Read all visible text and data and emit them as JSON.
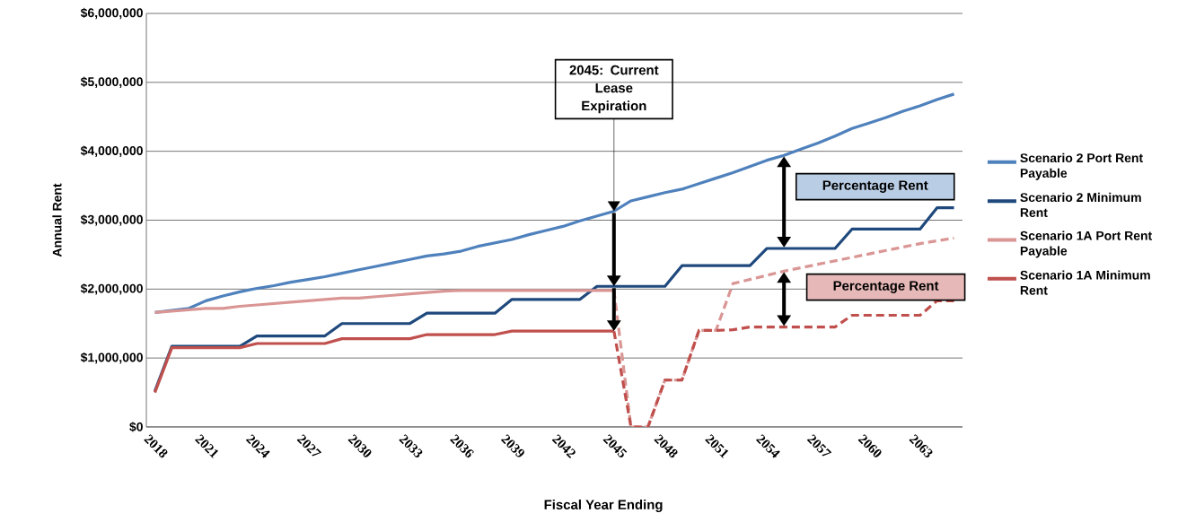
{
  "chart_data": {
    "type": "line",
    "xlabel": "Fiscal Year Ending",
    "ylabel": "Annual Rent",
    "categories": [
      "2018",
      null,
      null,
      "2021",
      null,
      null,
      "2024",
      null,
      null,
      "2027",
      null,
      null,
      "2030",
      null,
      null,
      "2033",
      null,
      null,
      "2036",
      null,
      null,
      "2039",
      null,
      null,
      "2042",
      null,
      null,
      "2045",
      null,
      null,
      "2048",
      null,
      null,
      "2051",
      null,
      null,
      "2054",
      null,
      null,
      "2057",
      null,
      null,
      "2060",
      null,
      null,
      "2063",
      null,
      null
    ],
    "ylim": [
      0,
      6000000
    ],
    "yticks": [
      {
        "value": 0,
        "label": "$0"
      },
      {
        "value": 1000000,
        "label": "$1,000,000"
      },
      {
        "value": 2000000,
        "label": "$2,000,000"
      },
      {
        "value": 3000000,
        "label": "$3,000,000"
      },
      {
        "value": 4000000,
        "label": "$4,000,000"
      },
      {
        "value": 5000000,
        "label": "$5,000,000"
      },
      {
        "value": 6000000,
        "label": "$6,000,000"
      }
    ],
    "grid": "y",
    "legend": "right",
    "series": [
      {
        "name": "Scenario 2 Port Rent Payable",
        "color": "#4f81bd",
        "line_style": "solid",
        "values": [
          1660000,
          1690000,
          1720000,
          1830000,
          1900000,
          1960000,
          2010000,
          2050000,
          2100000,
          2140000,
          2180000,
          2230000,
          2280000,
          2330000,
          2380000,
          2430000,
          2480000,
          2510000,
          2550000,
          2620000,
          2670000,
          2720000,
          2790000,
          2850000,
          2910000,
          2990000,
          3060000,
          3130000,
          3280000,
          3340000,
          3400000,
          3450000,
          3530000,
          3610000,
          3690000,
          3780000,
          3870000,
          3940000,
          4030000,
          4120000,
          4220000,
          4330000,
          4410000,
          4490000,
          4580000,
          4660000,
          4750000,
          4830000
        ]
      },
      {
        "name": "Scenario 2 Minimum Rent",
        "color": "#1f497d",
        "line_style": "solid",
        "values": [
          520000,
          1170000,
          1170000,
          1170000,
          1170000,
          1170000,
          1320000,
          1320000,
          1320000,
          1320000,
          1320000,
          1500000,
          1500000,
          1500000,
          1500000,
          1500000,
          1650000,
          1650000,
          1650000,
          1650000,
          1650000,
          1850000,
          1850000,
          1850000,
          1850000,
          1850000,
          2040000,
          2040000,
          2040000,
          2040000,
          2040000,
          2340000,
          2340000,
          2340000,
          2340000,
          2340000,
          2590000,
          2590000,
          2590000,
          2590000,
          2590000,
          2870000,
          2870000,
          2870000,
          2870000,
          2870000,
          3180000,
          3180000
        ]
      },
      {
        "name": "Scenario 1A Port Rent Payable",
        "color": "#d99694",
        "line_style": "solid",
        "values": [
          1660000,
          1680000,
          1700000,
          1720000,
          1720000,
          1750000,
          1770000,
          1790000,
          1810000,
          1830000,
          1850000,
          1870000,
          1870000,
          1890000,
          1910000,
          1930000,
          1950000,
          1970000,
          1980000,
          1980000,
          1980000,
          1980000,
          1980000,
          1980000,
          1980000,
          1980000,
          1980000,
          1980000,
          null,
          null,
          null,
          null,
          null,
          null,
          null,
          null,
          null,
          null,
          null,
          null,
          null,
          null,
          null,
          null,
          null,
          null,
          null,
          null
        ]
      },
      {
        "name": "Scenario 1A Minimum Rent",
        "color": "#c0504d",
        "line_style": "solid",
        "values": [
          500000,
          1150000,
          1150000,
          1150000,
          1150000,
          1150000,
          1210000,
          1210000,
          1210000,
          1210000,
          1210000,
          1280000,
          1280000,
          1280000,
          1280000,
          1280000,
          1340000,
          1340000,
          1340000,
          1340000,
          1340000,
          1390000,
          1390000,
          1390000,
          1390000,
          1390000,
          1390000,
          1390000,
          null,
          null,
          null,
          null,
          null,
          null,
          null,
          null,
          null,
          null,
          null,
          null,
          null,
          null,
          null,
          null,
          null,
          null,
          null,
          null
        ]
      },
      {
        "color": "#d99694",
        "line_style": "dashed",
        "values": [
          null,
          null,
          null,
          null,
          null,
          null,
          null,
          null,
          null,
          null,
          null,
          null,
          null,
          null,
          null,
          null,
          null,
          null,
          null,
          null,
          null,
          null,
          null,
          null,
          null,
          null,
          null,
          1980000,
          0,
          0,
          680000,
          680000,
          1400000,
          1400000,
          2080000,
          2140000,
          2200000,
          2260000,
          2310000,
          2360000,
          2410000,
          2460000,
          2510000,
          2560000,
          2610000,
          2660000,
          2700000,
          2740000
        ]
      },
      {
        "color": "#c0504d",
        "line_style": "dashed",
        "values": [
          null,
          null,
          null,
          null,
          null,
          null,
          null,
          null,
          null,
          null,
          null,
          null,
          null,
          null,
          null,
          null,
          null,
          null,
          null,
          null,
          null,
          null,
          null,
          null,
          null,
          null,
          null,
          1390000,
          0,
          0,
          680000,
          680000,
          1400000,
          1400000,
          1410000,
          1450000,
          1450000,
          1450000,
          1450000,
          1450000,
          1450000,
          1620000,
          1620000,
          1620000,
          1620000,
          1620000,
          1830000,
          1830000
        ]
      }
    ],
    "annotations": [
      "2045: Current Lease Expiration",
      "Percentage Rent",
      "Percentage Rent"
    ]
  }
}
